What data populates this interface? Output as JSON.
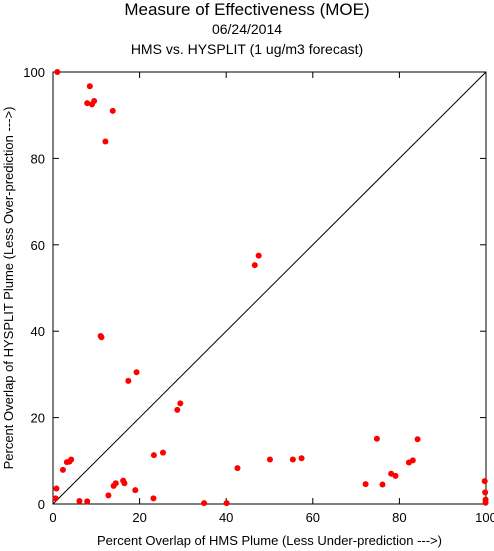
{
  "chart_data": {
    "type": "scatter",
    "title": "Measure of Effectiveness (MOE)",
    "subtitle": "06/24/2014",
    "subtitle2": "HMS vs. HYSPLIT  (1 ug/m3 forecast)",
    "xlabel": "Percent Overlap of HMS Plume (Less Under-prediction --->)",
    "ylabel": "Percent Overlap of HYSPLIT Plume (Less Over-prediction --->)",
    "xlim": [
      0,
      100
    ],
    "ylim": [
      0,
      100
    ],
    "xticks": [
      "0",
      "20",
      "40",
      "60",
      "80",
      "100"
    ],
    "yticks": [
      "0",
      "20",
      "40",
      "60",
      "80",
      "100"
    ],
    "grid": false,
    "diagonal_line": true,
    "marker_color": "#ff0000",
    "points": [
      [
        1.0,
        100.0
      ],
      [
        8.5,
        96.7
      ],
      [
        9.0,
        92.5
      ],
      [
        9.5,
        93.3
      ],
      [
        7.9,
        92.8
      ],
      [
        13.8,
        91.0
      ],
      [
        12.1,
        83.9
      ],
      [
        11.0,
        38.9
      ],
      [
        11.2,
        38.6
      ],
      [
        19.3,
        30.5
      ],
      [
        17.4,
        28.5
      ],
      [
        29.4,
        23.3
      ],
      [
        28.7,
        21.8
      ],
      [
        47.5,
        57.5
      ],
      [
        46.6,
        55.3
      ],
      [
        0.8,
        3.6
      ],
      [
        2.3,
        7.9
      ],
      [
        3.2,
        9.7
      ],
      [
        4.2,
        10.3
      ],
      [
        3.8,
        9.8
      ],
      [
        6.1,
        0.7
      ],
      [
        7.9,
        0.6
      ],
      [
        0.6,
        1.3
      ],
      [
        12.8,
        2.0
      ],
      [
        14.0,
        4.2
      ],
      [
        14.5,
        4.8
      ],
      [
        16.2,
        5.4
      ],
      [
        16.5,
        4.8
      ],
      [
        19.0,
        3.2
      ],
      [
        23.3,
        11.3
      ],
      [
        25.4,
        11.9
      ],
      [
        23.2,
        1.3
      ],
      [
        34.9,
        0.2
      ],
      [
        40.1,
        0.2
      ],
      [
        42.6,
        8.3
      ],
      [
        50.1,
        10.3
      ],
      [
        55.4,
        10.3
      ],
      [
        57.4,
        10.6
      ],
      [
        72.2,
        4.6
      ],
      [
        74.8,
        15.1
      ],
      [
        76.1,
        4.5
      ],
      [
        78.1,
        7.0
      ],
      [
        79.1,
        6.5
      ],
      [
        82.2,
        9.6
      ],
      [
        83.1,
        10.1
      ],
      [
        84.2,
        15.0
      ],
      [
        99.7,
        5.3
      ],
      [
        99.8,
        2.7
      ],
      [
        99.9,
        1.0
      ],
      [
        99.9,
        0.3
      ]
    ]
  }
}
